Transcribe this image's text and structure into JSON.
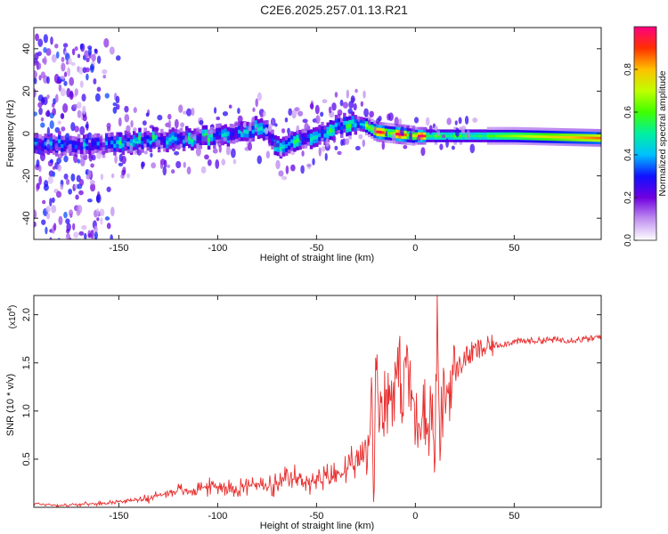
{
  "title": "C2E6.2025.257.01.13.R21",
  "chart_data": [
    {
      "type": "heatmap",
      "xlabel": "Height of straight line (km)",
      "ylabel": "Frequency (Hz)",
      "xlim": [
        -193,
        94
      ],
      "ylim": [
        -50,
        50
      ],
      "xticks": [
        -150,
        -100,
        -50,
        0,
        50
      ],
      "xtick_labels": [
        "-150",
        "-100",
        "-50",
        "0",
        "50"
      ],
      "yticks": [
        -40,
        -20,
        0,
        20,
        40
      ],
      "ytick_labels": [
        "-40",
        "-20",
        "0",
        "20",
        "40"
      ],
      "ridge": {
        "x": [
          -193,
          -175,
          -160,
          -150,
          -140,
          -125,
          -110,
          -100,
          -90,
          -80,
          -75,
          -70,
          -60,
          -50,
          -40,
          -30,
          -25,
          -20,
          -10,
          0,
          20,
          50,
          94
        ],
        "y": [
          -4,
          -5,
          -6,
          -5,
          -3,
          -3,
          -2,
          -1,
          0,
          3,
          0,
          -6,
          -3,
          -1,
          3,
          5,
          4,
          1,
          0,
          -1,
          -1,
          -1,
          -2
        ]
      },
      "colorbar": {
        "label": "Normalized spectral amplitude",
        "range": [
          0,
          1
        ],
        "ticks": [
          0.0,
          0.2,
          0.4,
          0.6,
          0.8
        ],
        "tick_labels": [
          "0.0",
          "0.2",
          "0.4",
          "0.6",
          "0.8"
        ],
        "colors": [
          "#ffffff",
          "#c090f0",
          "#7000e0",
          "#1010ff",
          "#00c0ff",
          "#00f0a0",
          "#40ff00",
          "#c0ff00",
          "#ffc000",
          "#ff3000",
          "#ff0080"
        ]
      }
    },
    {
      "type": "line",
      "xlabel": "Height of straight line (km)",
      "ylabel": "SNR (10 * v/v)",
      "y_multiplier": "(x10",
      "y_multiplier_exp": "4",
      "y_multiplier_close": ")",
      "xlim": [
        -193,
        94
      ],
      "ylim": [
        0,
        2.2
      ],
      "xticks": [
        -150,
        -100,
        -50,
        0,
        50
      ],
      "xtick_labels": [
        "-150",
        "-100",
        "-50",
        "0",
        "50"
      ],
      "yticks": [
        0.5,
        1.0,
        1.5,
        2.0
      ],
      "ytick_labels": [
        "0.5",
        "1.0",
        "1.5",
        "2.0"
      ],
      "color": "#e83030",
      "series": [
        {
          "name": "SNR",
          "x": [
            -193,
            -180,
            -170,
            -160,
            -150,
            -140,
            -135,
            -130,
            -125,
            -120,
            -115,
            -110,
            -100,
            -90,
            -80,
            -75,
            -70,
            -65,
            -60,
            -50,
            -45,
            -40,
            -35,
            -30,
            -27,
            -24,
            -22,
            -21,
            -20,
            -18,
            -15,
            -12,
            -10,
            -8,
            -6,
            -5,
            -3,
            -1,
            0,
            2,
            4,
            6,
            8,
            10,
            11,
            12,
            14,
            16,
            18,
            20,
            25,
            30,
            40,
            50,
            60,
            70,
            80,
            90,
            94
          ],
          "y": [
            0.04,
            0.02,
            0.03,
            0.04,
            0.06,
            0.08,
            0.1,
            0.12,
            0.15,
            0.18,
            0.16,
            0.2,
            0.22,
            0.2,
            0.25,
            0.2,
            0.22,
            0.28,
            0.3,
            0.25,
            0.3,
            0.34,
            0.38,
            0.45,
            0.5,
            0.7,
            1.2,
            0.3,
            1.35,
            1.1,
            1.1,
            1.2,
            1.3,
            1.45,
            1.0,
            1.7,
            1.2,
            1.1,
            0.85,
            0.95,
            1.15,
            0.75,
            1.1,
            0.45,
            2.15,
            0.6,
            1.1,
            1.2,
            1.3,
            1.4,
            1.55,
            1.62,
            1.68,
            1.72,
            1.73,
            1.74,
            1.74,
            1.75,
            1.78
          ]
        }
      ]
    }
  ]
}
